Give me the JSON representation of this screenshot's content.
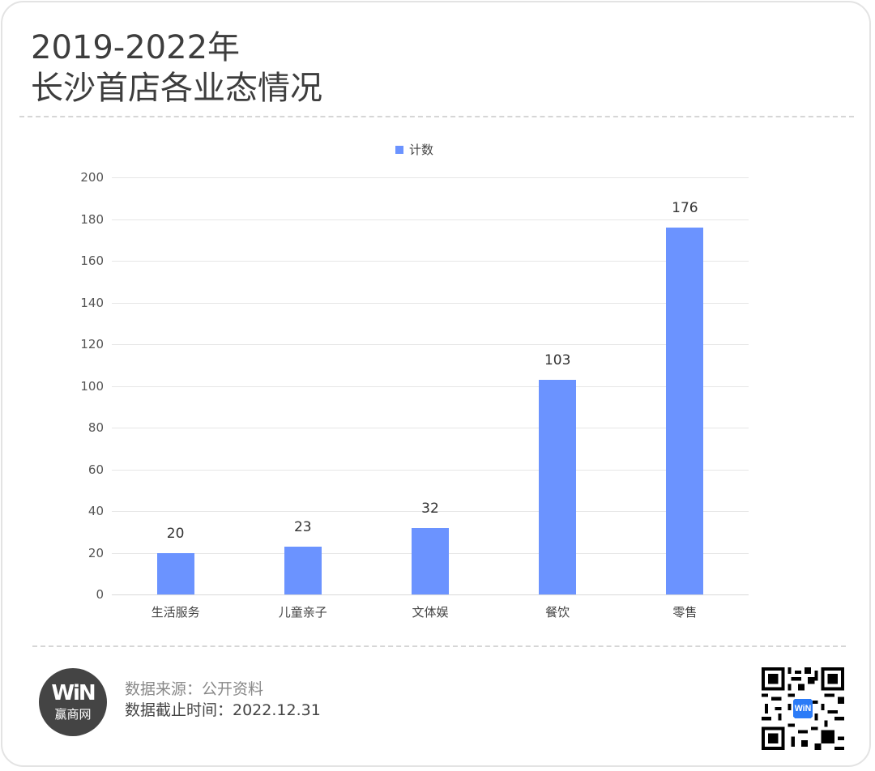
{
  "header": {
    "title_line1": "2019-2022年",
    "title_line2": "长沙首店各业态情况"
  },
  "legend": {
    "label": "计数",
    "color": "#6b93ff"
  },
  "axis": {
    "y_ticks": [
      "200",
      "180",
      "160",
      "140",
      "120",
      "100",
      "80",
      "60",
      "40",
      "20",
      "0"
    ]
  },
  "bars": [
    {
      "category": "生活服务",
      "value": "20"
    },
    {
      "category": "儿童亲子",
      "value": "23"
    },
    {
      "category": "文体娱",
      "value": "32"
    },
    {
      "category": "餐饮",
      "value": "103"
    },
    {
      "category": "零售",
      "value": "176"
    }
  ],
  "footer": {
    "logo_mark": "WiN",
    "logo_text": "赢商网",
    "source": "数据来源：公开资料",
    "cutoff": "数据截止时间：2022.12.31"
  },
  "chart_data": {
    "type": "bar",
    "title": "2019-2022年 长沙首店各业态情况",
    "categories": [
      "生活服务",
      "儿童亲子",
      "文体娱",
      "餐饮",
      "零售"
    ],
    "series": [
      {
        "name": "计数",
        "values": [
          20,
          23,
          32,
          103,
          176
        ],
        "color": "#6b93ff"
      }
    ],
    "xlabel": "",
    "ylabel": "",
    "ylim": [
      0,
      200
    ],
    "y_ticks": [
      0,
      20,
      40,
      60,
      80,
      100,
      120,
      140,
      160,
      180,
      200
    ],
    "grid": true,
    "legend_position": "top",
    "data_labels": true
  }
}
